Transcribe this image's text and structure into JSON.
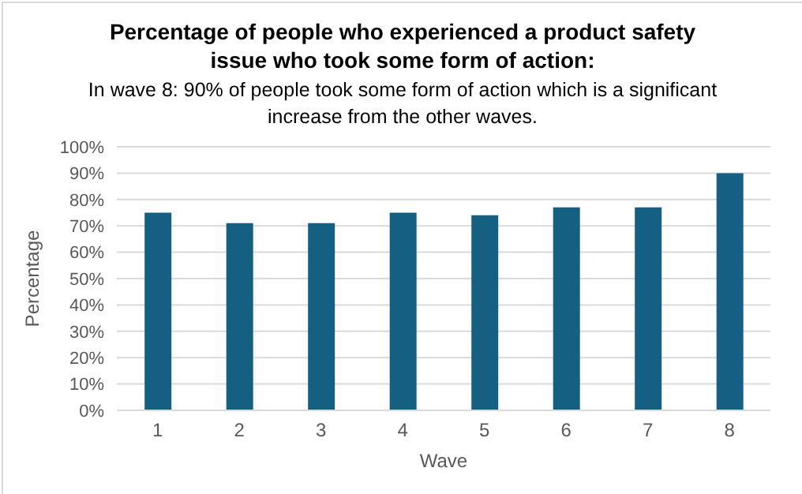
{
  "chart_data": {
    "type": "bar",
    "title": "Percentage of people who experienced a product safety issue who took some form of action:",
    "subtitle": "In wave 8: 90% of people took some form of action which is a significant increase from the other waves.",
    "xlabel": "Wave",
    "ylabel": "Percentage",
    "categories": [
      "1",
      "2",
      "3",
      "4",
      "5",
      "6",
      "7",
      "8"
    ],
    "values": [
      75,
      71,
      71,
      75,
      74,
      77,
      77,
      90
    ],
    "color": "#156082",
    "ylim": [
      0,
      100
    ],
    "yticks": [
      {
        "value": 0,
        "label": "0%"
      },
      {
        "value": 10,
        "label": "10%"
      },
      {
        "value": 20,
        "label": "20%"
      },
      {
        "value": 30,
        "label": "30%"
      },
      {
        "value": 40,
        "label": "40%"
      },
      {
        "value": 50,
        "label": "50%"
      },
      {
        "value": 60,
        "label": "60%"
      },
      {
        "value": 70,
        "label": "70%"
      },
      {
        "value": 80,
        "label": "80%"
      },
      {
        "value": 90,
        "label": "90%"
      },
      {
        "value": 100,
        "label": "100%"
      }
    ],
    "grid": "y"
  }
}
